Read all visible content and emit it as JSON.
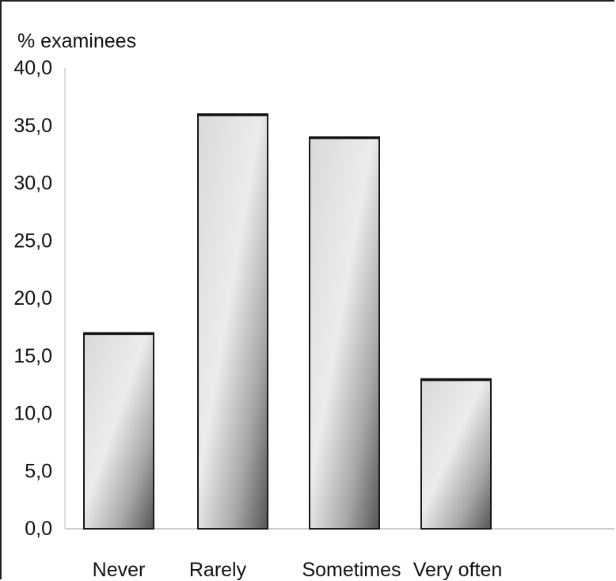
{
  "chart_data": {
    "type": "bar",
    "ylabel": "% examinees",
    "categories": [
      "Never",
      "Rarely",
      "Sometimes",
      "Very often"
    ],
    "values": [
      17.0,
      36.0,
      34.0,
      13.0
    ],
    "ylim": [
      0,
      40
    ],
    "yticks": [
      "0,0",
      "5,0",
      "10,0",
      "15,0",
      "20,0",
      "25,0",
      "30,0",
      "35,0",
      "40,0"
    ],
    "ytick_values": [
      0,
      5,
      10,
      15,
      20,
      25,
      30,
      35,
      40
    ],
    "grid": false,
    "legend": "none",
    "colors": {
      "bar_light": "#e6e6e6",
      "bar_dark": "#555555",
      "bar_edge": "#1a1a1a",
      "axis": "#bdbdbd"
    }
  }
}
